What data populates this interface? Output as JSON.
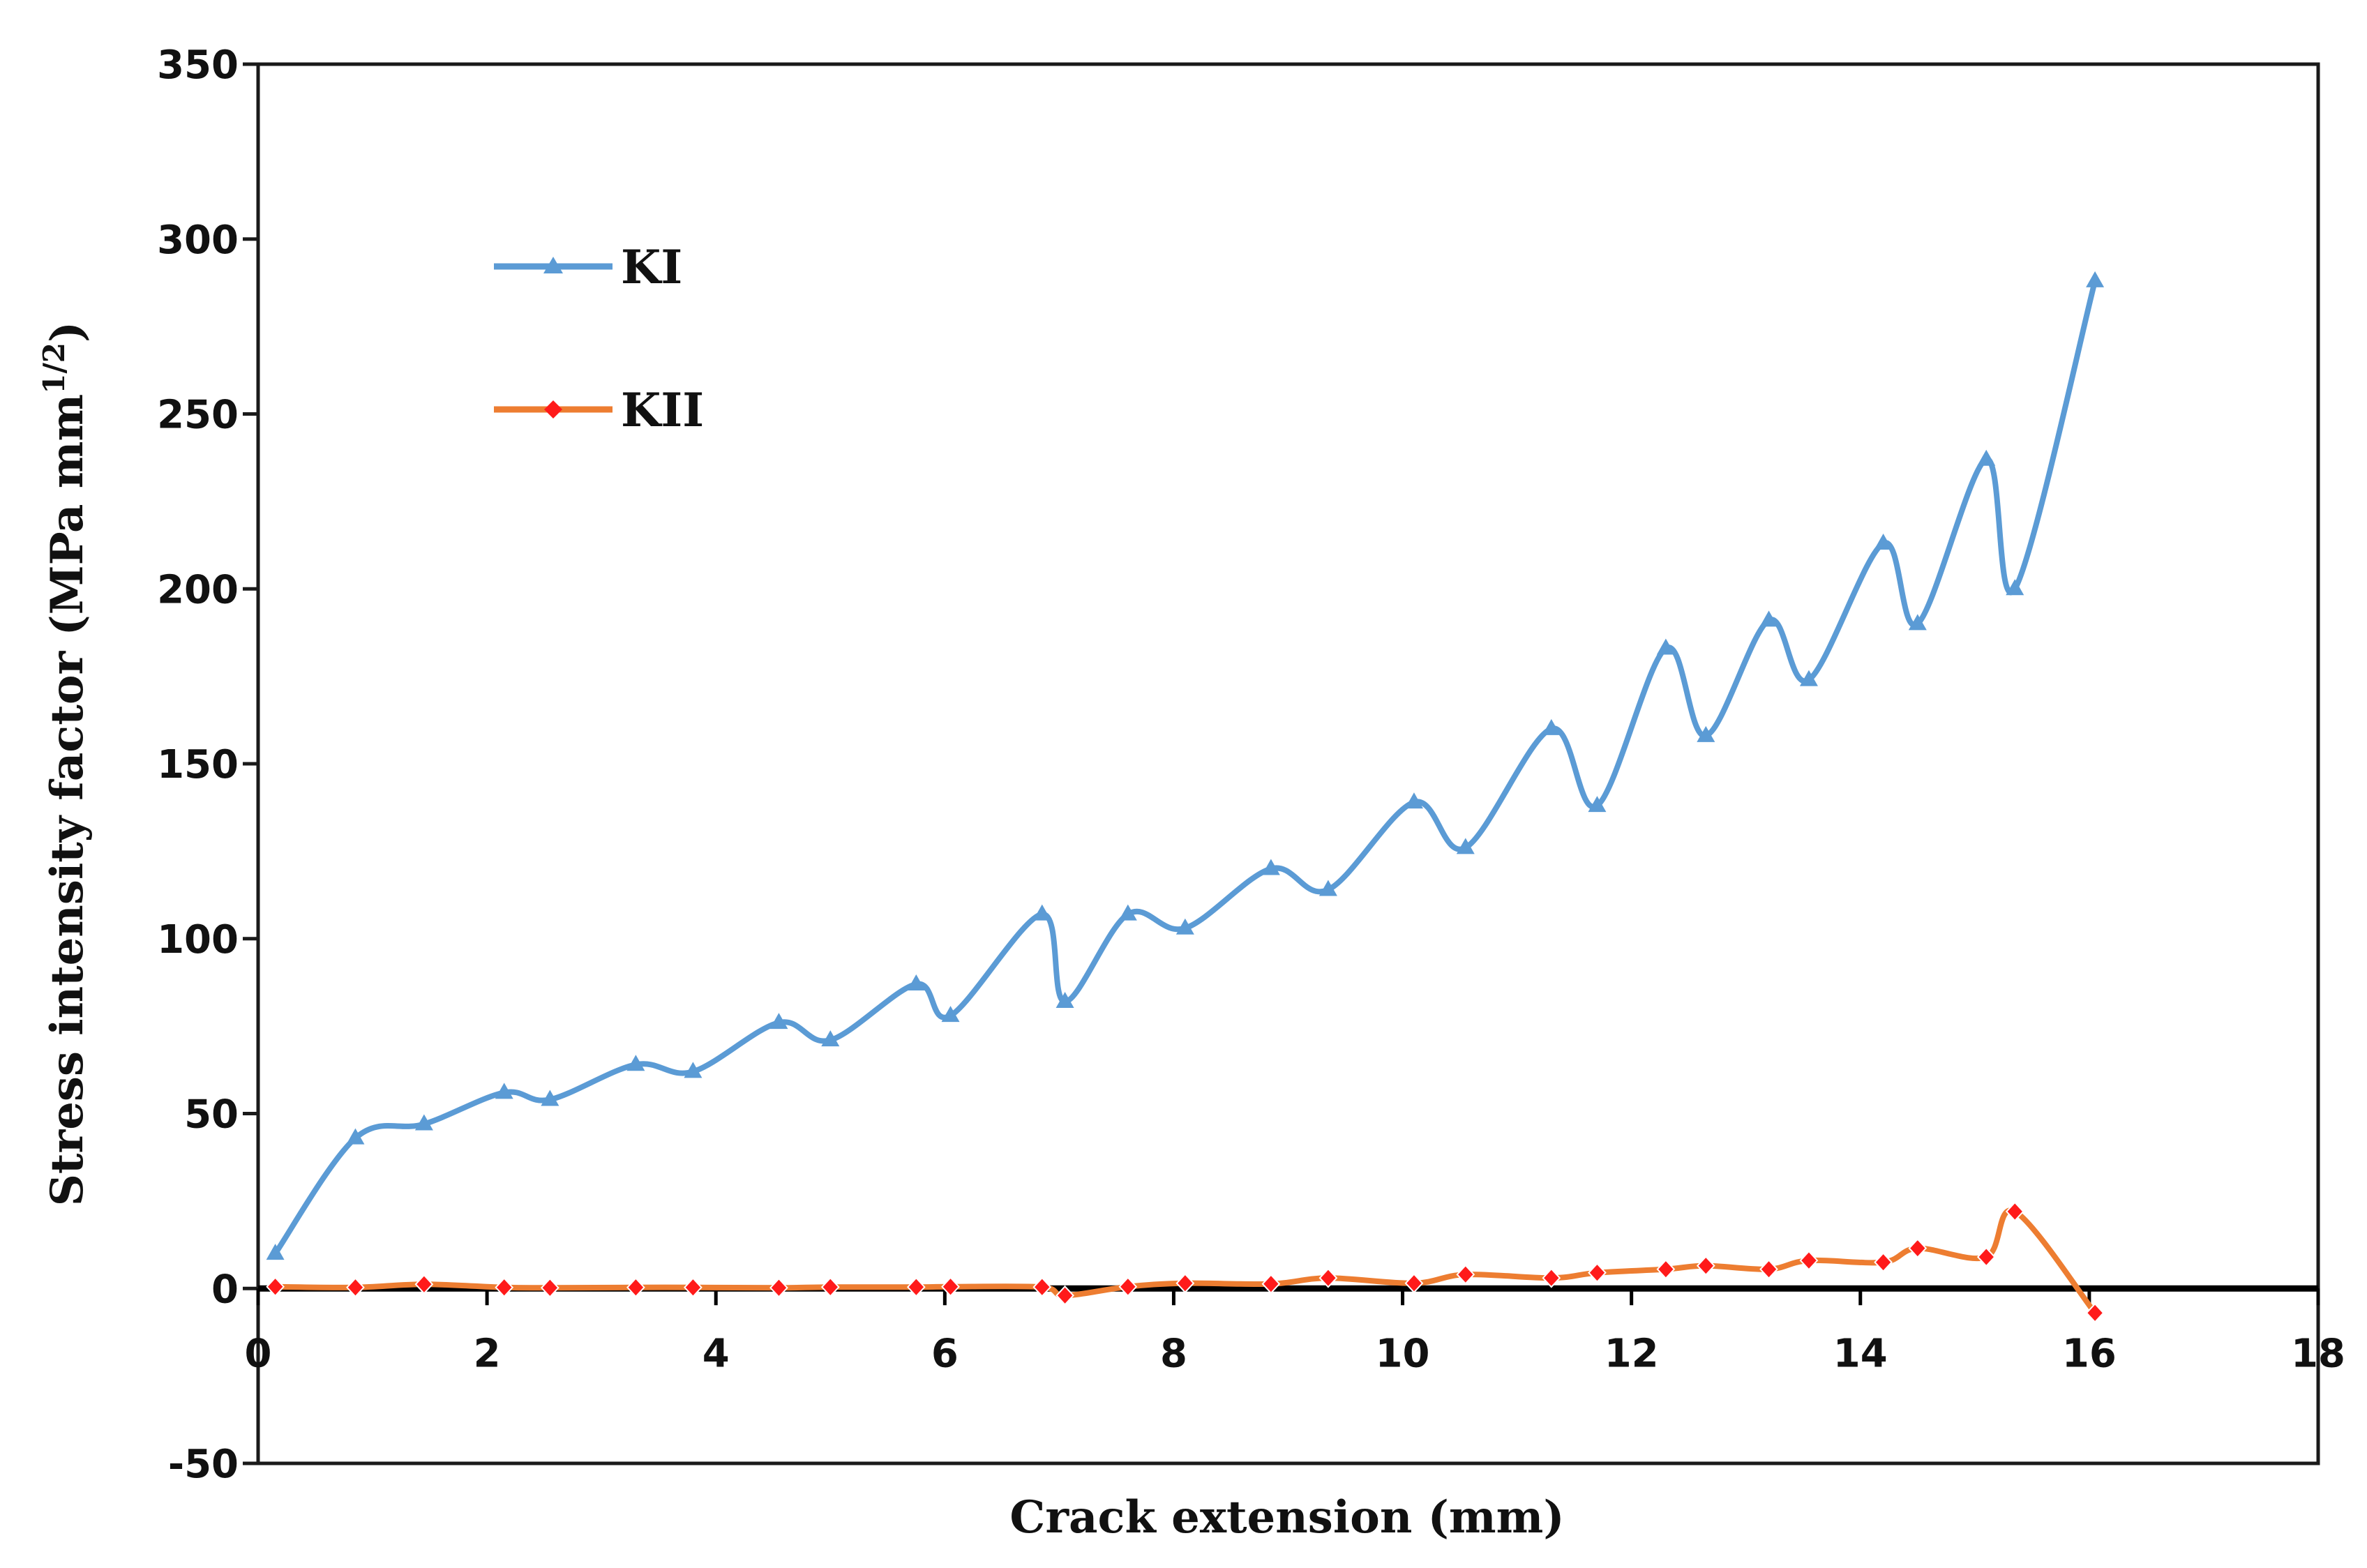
{
  "chart_data": {
    "type": "line",
    "title": "",
    "xlabel": "Crack extension (mm)",
    "ylabel_main": "Stress intensity factor (MPa mm",
    "ylabel_sup": "1/2",
    "ylabel_close": ")",
    "xlim": [
      0,
      18
    ],
    "ylim": [
      -50,
      350
    ],
    "xticks": [
      0,
      2,
      4,
      6,
      8,
      10,
      12,
      14,
      16,
      18
    ],
    "yticks": [
      -50,
      0,
      50,
      100,
      150,
      200,
      250,
      300,
      350
    ],
    "xtick_labels": [
      "0",
      "2",
      "4",
      "6",
      "8",
      "10",
      "12",
      "14",
      "16",
      "18"
    ],
    "ytick_labels": [
      "-50",
      "0",
      "50",
      "100",
      "150",
      "200",
      "250",
      "300",
      "350"
    ],
    "grid": false,
    "legend_position": "top-left",
    "series": [
      {
        "name": "KI",
        "color": "#5b9bd5",
        "marker": "triangle",
        "x": [
          0.15,
          0.85,
          1.45,
          2.15,
          2.55,
          3.3,
          3.8,
          4.55,
          5.0,
          5.75,
          6.05,
          6.85,
          7.05,
          7.6,
          8.1,
          8.85,
          9.35,
          10.1,
          10.55,
          11.3,
          11.7,
          12.3,
          12.65,
          13.2,
          13.55,
          14.2,
          14.5,
          15.1,
          15.35,
          16.05
        ],
        "y": [
          10,
          43,
          47,
          56,
          54,
          64,
          62,
          76,
          71,
          87,
          78,
          107,
          82,
          107,
          103,
          120,
          114,
          139,
          126,
          160,
          138,
          183,
          158,
          191,
          174,
          213,
          190,
          237,
          200,
          288
        ]
      },
      {
        "name": "KII",
        "color": "#ed7d31",
        "marker_color": "#ff1a1a",
        "marker": "diamond",
        "x": [
          0.15,
          0.85,
          1.45,
          2.15,
          2.55,
          3.3,
          3.8,
          4.55,
          5.0,
          5.75,
          6.05,
          6.85,
          7.05,
          7.6,
          8.1,
          8.85,
          9.35,
          10.1,
          10.55,
          11.3,
          11.7,
          12.3,
          12.65,
          13.2,
          13.55,
          14.2,
          14.5,
          15.1,
          15.35,
          16.05
        ],
        "y": [
          0.5,
          0.3,
          1.2,
          0.3,
          0.2,
          0.3,
          0.3,
          0.2,
          0.4,
          0.4,
          0.5,
          0.4,
          -2,
          0.5,
          1.5,
          1.3,
          3,
          1.5,
          4,
          3,
          4.5,
          5.5,
          6.5,
          5.5,
          8,
          7.5,
          11.5,
          9,
          22,
          -7
        ]
      }
    ]
  }
}
